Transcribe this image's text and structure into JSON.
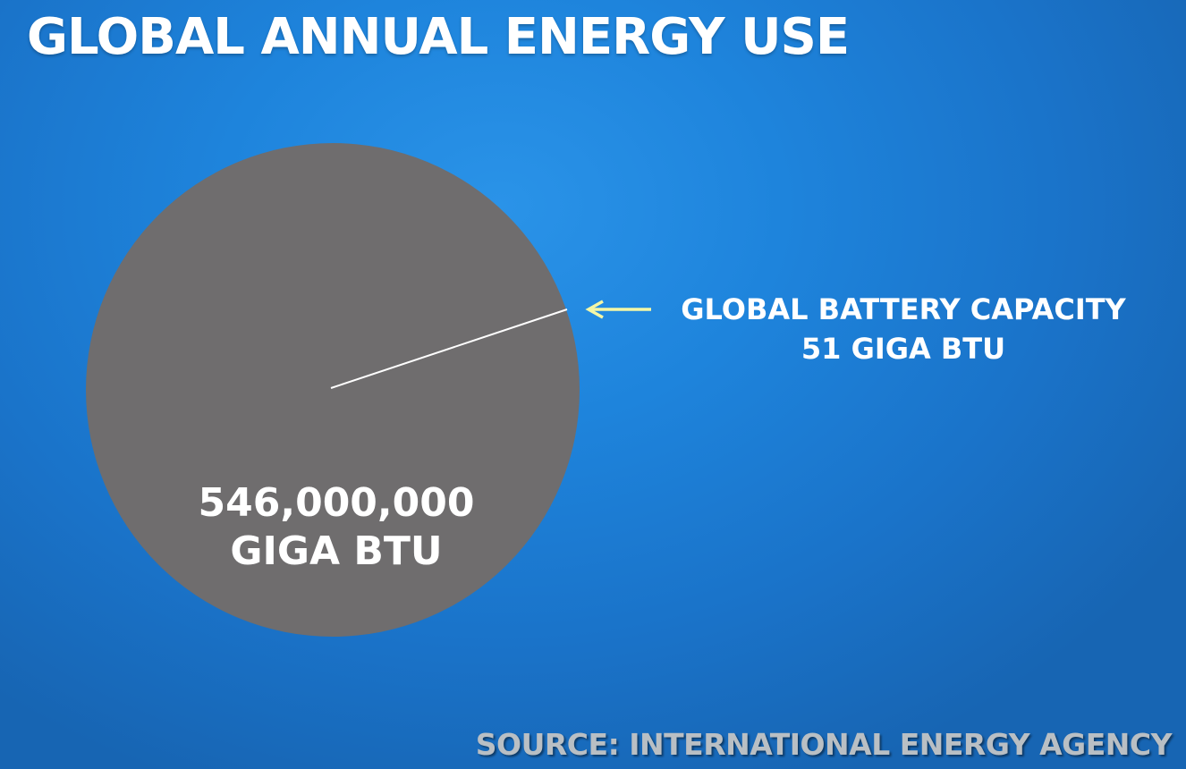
{
  "title": "GLOBAL ANNUAL ENERGY USE",
  "chart_data": {
    "type": "pie",
    "slices": [
      {
        "label_line1": "546,000,000",
        "label_line2": "GIGA BTU",
        "value": 546000000
      },
      {
        "label_line1": "GLOBAL BATTERY CAPACITY",
        "label_line2": "51 GIGA BTU",
        "value": 51
      }
    ]
  },
  "source": "SOURCE:  INTERNATIONAL ENERGY AGENCY",
  "colors": {
    "background": "#1e84dc",
    "pie": "#6f6d6e",
    "slice_line": "#ffffff",
    "arrow": "#f4f7a6",
    "source_text": "#b9bfc4"
  }
}
